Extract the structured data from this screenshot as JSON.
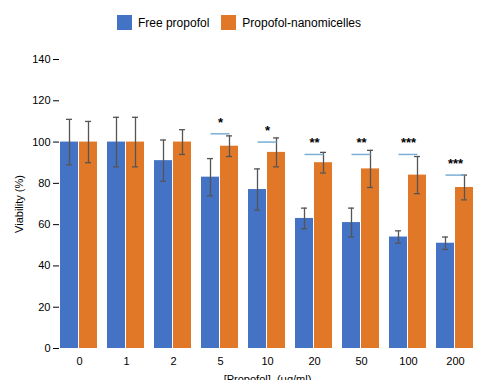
{
  "chart_data": {
    "type": "bar",
    "xlabel": "[Propofol]  (μg/ml)",
    "ylabel": "Viability (%)",
    "categories": [
      "0",
      "1",
      "2",
      "5",
      "10",
      "20",
      "50",
      "100",
      "200"
    ],
    "series": [
      {
        "name": "Free propofol",
        "color": "#4472C4",
        "values": [
          100,
          100,
          91,
          83,
          77,
          63,
          61,
          54,
          51
        ],
        "errors": [
          11,
          12,
          10,
          9,
          10,
          5,
          7,
          3,
          3
        ]
      },
      {
        "name": "Propofol-nanomicelles",
        "color": "#E07828",
        "values": [
          100,
          100,
          100,
          98,
          95,
          90,
          87,
          84,
          78
        ],
        "errors": [
          10,
          12,
          6,
          5,
          7,
          5,
          9,
          9,
          6
        ]
      }
    ],
    "ylim": [
      0,
      140
    ],
    "yticks": [
      0,
      20,
      40,
      60,
      80,
      100,
      120,
      140
    ],
    "grid": false,
    "legend": "top",
    "annotations": [
      {
        "text": "*",
        "category": "5",
        "y": 107,
        "line_y": 104,
        "color": "#7BAFD4"
      },
      {
        "text": "*",
        "category": "10",
        "y": 103,
        "line_y": 100,
        "color": "#7BAFD4"
      },
      {
        "text": "**",
        "category": "20",
        "y": 97,
        "line_y": 94,
        "color": "#7BAFD4"
      },
      {
        "text": "**",
        "category": "50",
        "y": 97,
        "line_y": 94,
        "color": "#7BAFD4"
      },
      {
        "text": "***",
        "category": "100",
        "y": 97,
        "line_y": 94,
        "color": "#7BAFD4"
      },
      {
        "text": "***",
        "category": "200",
        "y": 87,
        "line_y": 84,
        "color": "#7BAFD4"
      }
    ]
  }
}
